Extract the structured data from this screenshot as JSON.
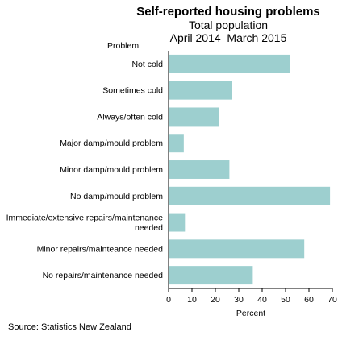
{
  "chart_data": {
    "type": "bar",
    "orientation": "horizontal",
    "title": "Self-reported housing problems",
    "subtitle_1": "Total population",
    "subtitle_2": "April 2014–March  2015",
    "ylabel": "Problem",
    "xlabel": "Percent",
    "xlim": [
      0,
      70
    ],
    "xticks": [
      "0",
      "10",
      "20",
      "30",
      "40",
      "50",
      "60",
      "70"
    ],
    "grid": false,
    "bar_color": "#9dcfcf",
    "categories": [
      [
        "Not cold"
      ],
      [
        "Sometimes cold"
      ],
      [
        "Always/often cold"
      ],
      [
        "Major damp/mould problem"
      ],
      [
        "Minor damp/mould problem"
      ],
      [
        "No damp/mould problem"
      ],
      [
        "Immediate/extensive repairs/maintenance",
        "needed"
      ],
      [
        "Minor repairs/mainteance needed"
      ],
      [
        "No repairs/maintenance needed"
      ]
    ],
    "values": [
      52,
      27,
      21.5,
      6.5,
      26,
      69,
      7,
      58,
      36
    ],
    "source": "Source: Statistics New Zealand"
  }
}
